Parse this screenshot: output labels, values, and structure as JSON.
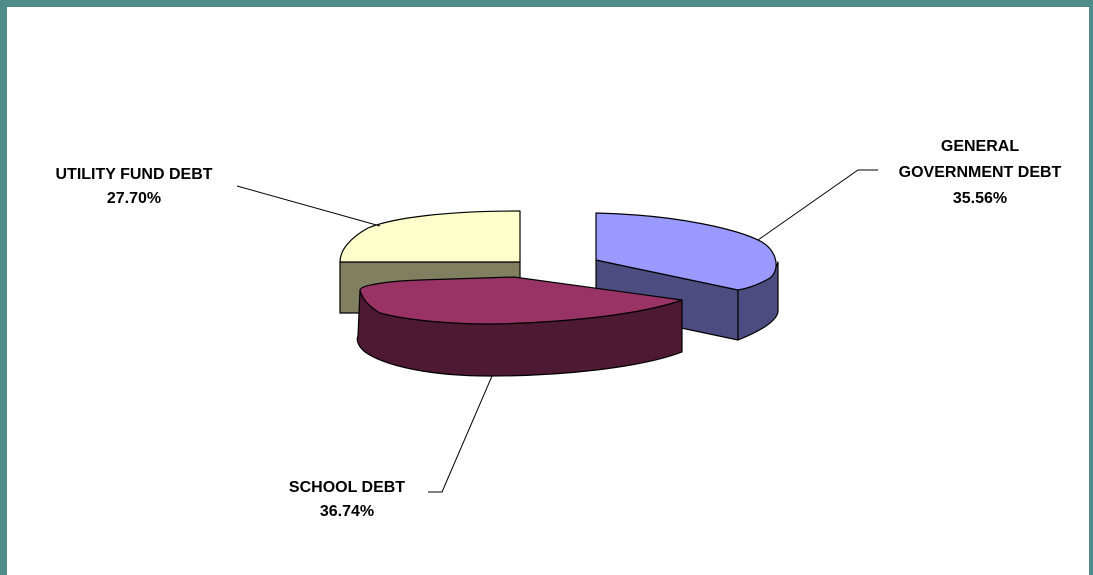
{
  "chart_data": {
    "type": "pie",
    "title": "",
    "legend": "none",
    "slices": [
      {
        "label_lines": [
          "UTILITY FUND DEBT"
        ],
        "value_label": "27.70%",
        "value": 27.7,
        "colors": {
          "top": "#FFFFCC",
          "side": "#808060"
        }
      },
      {
        "label_lines": [
          "GENERAL",
          "GOVERNMENT DEBT"
        ],
        "value_label": "35.56%",
        "value": 35.56,
        "colors": {
          "top": "#9999FF",
          "side": "#4C4C80"
        }
      },
      {
        "label_lines": [
          "SCHOOL DEBT"
        ],
        "value_label": "36.74%",
        "value": 36.74,
        "colors": {
          "top": "#993366",
          "side": "#4D1933"
        }
      }
    ]
  }
}
